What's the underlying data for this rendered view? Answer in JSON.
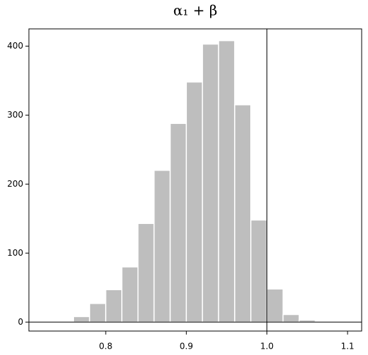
{
  "chart_data": {
    "type": "histogram",
    "title": "α₁ + β",
    "bins": [
      0.74,
      0.76,
      0.78,
      0.8,
      0.82,
      0.84,
      0.86,
      0.88,
      0.9,
      0.92,
      0.94,
      0.96,
      0.98,
      1.0,
      1.02,
      1.04,
      1.06
    ],
    "values": [
      1,
      8,
      27,
      47,
      80,
      143,
      220,
      288,
      348,
      403,
      408,
      315,
      148,
      48,
      11,
      3
    ],
    "color": "#bebebe",
    "xlim": [
      0.7047,
      1.1175
    ],
    "xticks": [
      0.8,
      0.9,
      {
        "value": 1,
        "label": "1.0"
      },
      1.1
    ],
    "ylim": [
      -13,
      425
    ],
    "yticks": [
      0,
      100,
      200,
      300,
      400
    ],
    "vline": 1
  }
}
